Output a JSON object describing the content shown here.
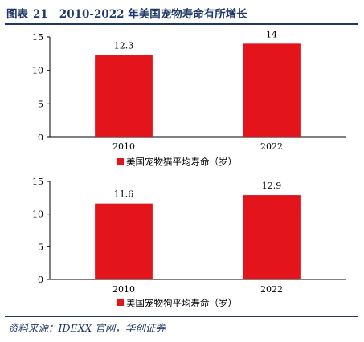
{
  "figure": {
    "label": "图表",
    "number": "21",
    "title": "2010-2022 年美国宠物寿命有所增长"
  },
  "source": "资料来源：IDEXX 官网，华创证券",
  "colors": {
    "bar": "#e3141c",
    "title": "#1f3864",
    "axis": "#000000"
  },
  "chart_data": [
    {
      "type": "bar",
      "categories": [
        "2010",
        "2022"
      ],
      "series": [
        {
          "name": "美国宠物猫平均寿命（岁）",
          "values": [
            12.3,
            14
          ]
        }
      ],
      "data_labels": [
        "12.3",
        "14"
      ],
      "ylim": [
        0,
        15
      ],
      "yticks": [
        0,
        5,
        10,
        15
      ],
      "legend": "bottom",
      "grid": false
    },
    {
      "type": "bar",
      "categories": [
        "2010",
        "2022"
      ],
      "series": [
        {
          "name": "美国宠物狗平均寿命（岁）",
          "values": [
            11.6,
            12.9
          ]
        }
      ],
      "data_labels": [
        "11.6",
        "12.9"
      ],
      "ylim": [
        0,
        15
      ],
      "yticks": [
        0,
        5,
        10,
        15
      ],
      "legend": "bottom",
      "grid": false
    }
  ]
}
